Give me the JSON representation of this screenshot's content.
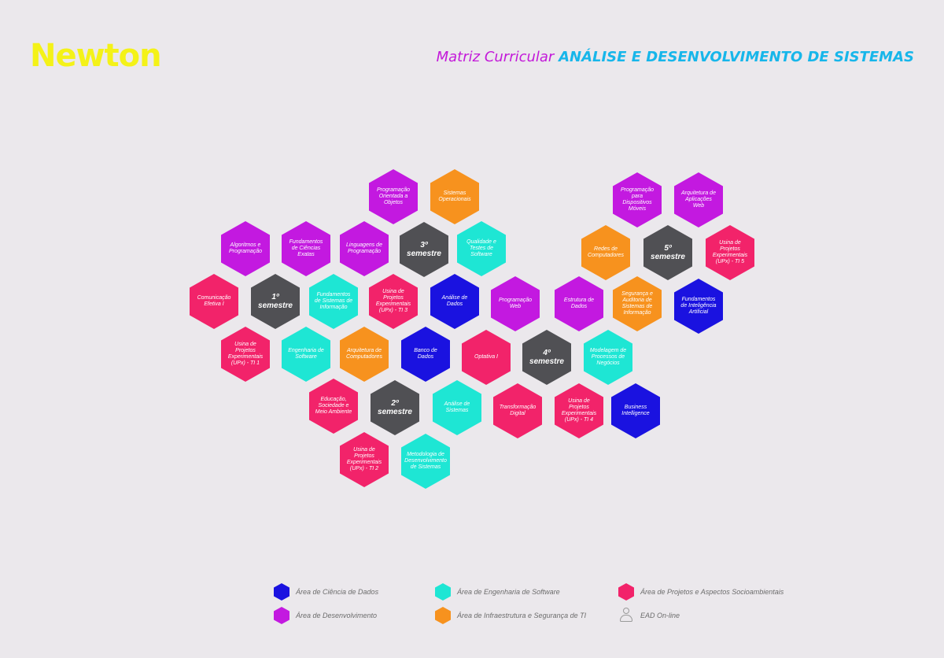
{
  "logo": "Newton",
  "heading": {
    "prefix": "Matriz Curricular",
    "title": "ANÁLISE E DESENVOLVIMENTO DE SISTEMAS"
  },
  "colors": {
    "dados": "#1a12e0",
    "desenvolvimento": "#c319e0",
    "engenharia": "#1ee6d4",
    "infra": "#f7921e",
    "projetos": "#f2236a",
    "semestre": "#505054"
  },
  "hexes": [
    {
      "label": "Programação Orientada a Objetos",
      "area": "desenvolvimento"
    },
    {
      "label": "Sistemas Operacionais",
      "area": "infra"
    },
    {
      "label": "Programação para Dispositivos Móveis",
      "area": "desenvolvimento"
    },
    {
      "label": "Arquitetura de Aplicações Web",
      "area": "desenvolvimento"
    },
    {
      "label": "Algoritmos e Programação",
      "area": "desenvolvimento"
    },
    {
      "label": "Fundamentos de Ciências Exatas",
      "area": "desenvolvimento"
    },
    {
      "label": "Linguagens de Programação",
      "area": "desenvolvimento"
    },
    {
      "label": "3º semestre",
      "area": "semestre"
    },
    {
      "label": "Qualidade e Testes de Software",
      "area": "engenharia"
    },
    {
      "label": "Redes de Computadores",
      "area": "infra"
    },
    {
      "label": "5º semestre",
      "area": "semestre"
    },
    {
      "label": "Usina de Projetos Experimentais (UPx) - TI 5",
      "area": "projetos"
    },
    {
      "label": "Comunicação Efetiva I",
      "area": "projetos"
    },
    {
      "label": "1º semestre",
      "area": "semestre"
    },
    {
      "label": "Fundamentos de Sistemas de Informação",
      "area": "engenharia"
    },
    {
      "label": "Usina de Projetos Experimentais (UPx) - TI 3",
      "area": "projetos"
    },
    {
      "label": "Análise de Dados",
      "area": "dados"
    },
    {
      "label": "Programação Web",
      "area": "desenvolvimento"
    },
    {
      "label": "Estrutura de Dados",
      "area": "desenvolvimento"
    },
    {
      "label": "Segurança e Auditoria de Sistemas de Informação",
      "area": "infra"
    },
    {
      "label": "Fundamentos de Inteligência Artificial",
      "area": "dados"
    },
    {
      "label": "Usina de Projetos Experimentais (UPx) - TI 1",
      "area": "projetos"
    },
    {
      "label": "Engenharia de Software",
      "area": "engenharia"
    },
    {
      "label": "Arquitetura de Computadores",
      "area": "infra"
    },
    {
      "label": "Banco de Dados",
      "area": "dados"
    },
    {
      "label": "Optativa I",
      "area": "projetos"
    },
    {
      "label": "4º semestre",
      "area": "semestre"
    },
    {
      "label": "Modelagem de Processos de Negócios",
      "area": "engenharia"
    },
    {
      "label": "Educação, Sociedade e Meio Ambiente",
      "area": "projetos"
    },
    {
      "label": "2º semestre",
      "area": "semestre"
    },
    {
      "label": "Análise de Sistemas",
      "area": "engenharia"
    },
    {
      "label": "Transformação Digital",
      "area": "projetos"
    },
    {
      "label": "Usina de Projetos Experimentais (UPx) - TI 4",
      "area": "projetos"
    },
    {
      "label": "Business Intelligence",
      "area": "dados"
    },
    {
      "label": "Usina de Projetos Experimentais (UPx) - TI 2",
      "area": "projetos"
    },
    {
      "label": "Metodologia de Desenvolvimento de Sistemas",
      "area": "engenharia"
    }
  ],
  "legend": [
    {
      "label": "Área de Ciência de Dados",
      "area": "dados"
    },
    {
      "label": "Área de Engenharia de Software",
      "area": "engenharia"
    },
    {
      "label": "Área de Projetos e Aspectos Socioambientais",
      "area": "projetos"
    },
    {
      "label": "Área de Desenvolvimento",
      "area": "desenvolvimento"
    },
    {
      "label": "Área de Infraestrutura e Segurança de TI",
      "area": "infra"
    },
    {
      "label": "EAD On-line",
      "area": "ead",
      "icon": "person-online-icon"
    }
  ]
}
